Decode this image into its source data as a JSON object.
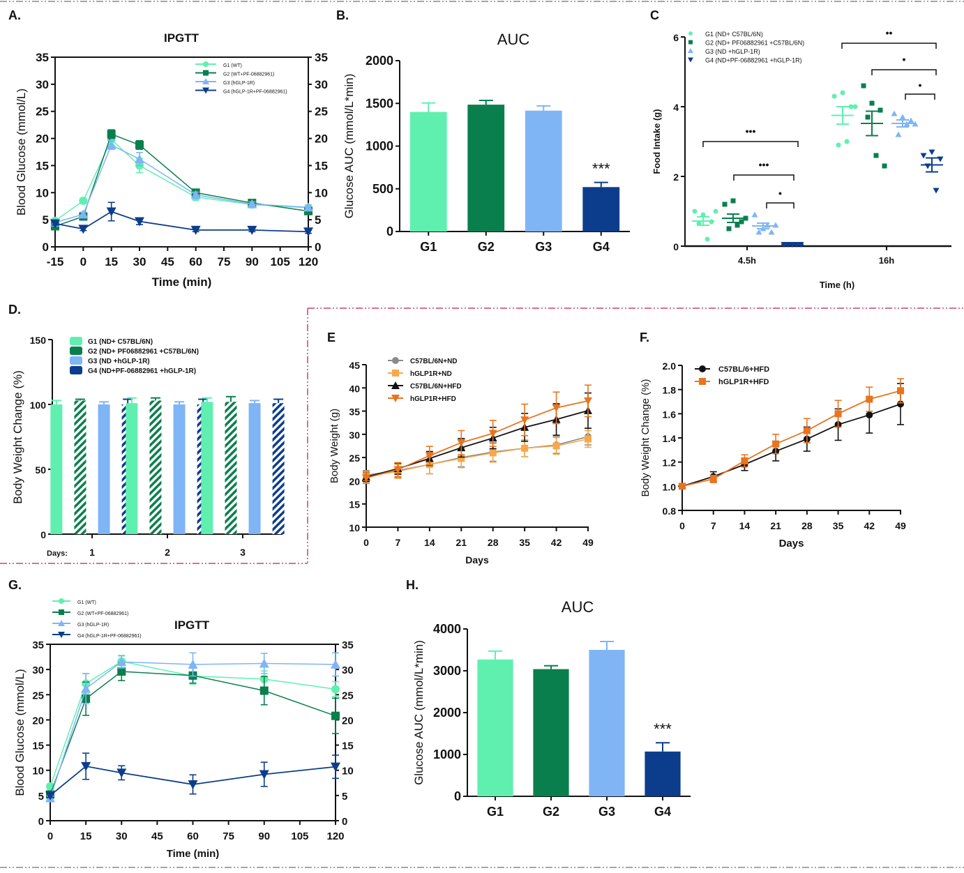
{
  "colors": {
    "g1": "#5ff0b0",
    "g2": "#0a7f4e",
    "g3": "#7fb5f5",
    "g4": "#0c3d8c",
    "gray": "#8a8a8a",
    "orange_light": "#f7a84a",
    "black": "#111111",
    "orange_dark": "#e8741e",
    "divider_pink": "#c8407a",
    "divider_gray": "#888888"
  },
  "chart_data": [
    {
      "panel": "A.",
      "type": "line",
      "title": "IPGTT",
      "xlabel": "Time (min)",
      "ylabel": "Blood Glucose (mmol/L)",
      "x": [
        -15,
        0,
        15,
        30,
        60,
        90,
        120
      ],
      "xticks": [
        "-15",
        "0",
        "15",
        "30",
        "45",
        "60",
        "75",
        "90",
        "105",
        "120"
      ],
      "xtick_values": [
        -15,
        0,
        15,
        30,
        45,
        60,
        75,
        90,
        105,
        120
      ],
      "ylim": [
        0,
        35
      ],
      "yticks": [
        0,
        5,
        10,
        15,
        20,
        25,
        30,
        35
      ],
      "right_axis": true,
      "legend": "top-right",
      "series": [
        {
          "name": "G1 (WT)",
          "marker": "circle",
          "values": [
            4.8,
            8.5,
            19.8,
            15.0,
            9.2,
            7.8,
            7.2
          ],
          "err": [
            0.3,
            0.5,
            1.0,
            1.3,
            0.6,
            0.4,
            0.4
          ]
        },
        {
          "name": "G2 (WT+PF-06882961)",
          "marker": "square",
          "values": [
            3.8,
            5.6,
            20.8,
            18.8,
            10.0,
            8.1,
            6.6
          ],
          "err": [
            0.3,
            0.4,
            0.8,
            0.8,
            0.5,
            0.3,
            0.4
          ]
        },
        {
          "name": "G3 (hGLP-1R)",
          "marker": "triangle",
          "values": [
            4.5,
            6.0,
            18.8,
            16.2,
            9.6,
            7.9,
            7.3
          ],
          "err": [
            0.3,
            0.4,
            0.8,
            1.2,
            0.5,
            0.4,
            0.4
          ]
        },
        {
          "name": "G4 (hGLP-1R+PF-06882961)",
          "marker": "triangle-down",
          "values": [
            4.3,
            3.3,
            6.5,
            4.7,
            3.1,
            3.1,
            2.8
          ],
          "err": [
            0.3,
            0.3,
            1.7,
            0.6,
            0.3,
            0.3,
            0.3
          ]
        }
      ]
    },
    {
      "panel": "B.",
      "type": "bar",
      "title": "AUC",
      "xlabel": "",
      "ylabel": "Glucose AUC (mmol/L*min)",
      "categories": [
        "G1",
        "G2",
        "G3",
        "G4"
      ],
      "values": [
        1400,
        1485,
        1415,
        520
      ],
      "err": [
        105,
        50,
        55,
        55
      ],
      "ylim": [
        0,
        2000
      ],
      "yticks": [
        0,
        500,
        1000,
        1500,
        2000
      ],
      "annotations": [
        {
          "category": "G4",
          "text": "***"
        }
      ]
    },
    {
      "panel": "C",
      "type": "scatter",
      "title": "",
      "xlabel": "Time (h)",
      "ylabel": "Food Intake (g)",
      "categories": [
        "4.5h",
        "16h"
      ],
      "ylim": [
        0,
        6
      ],
      "yticks": [
        0,
        2,
        4,
        6
      ],
      "legend": "top-left",
      "series": [
        {
          "name": "G1 (ND+ C57BL/6N)",
          "marker": "circle",
          "mean": [
            0.72,
            3.75
          ],
          "err": [
            0.12,
            0.25
          ],
          "points": [
            [
              1.0,
              0.9,
              0.7,
              0.65,
              0.2,
              1.0
            ],
            [
              4.3,
              4.4,
              4.0,
              2.9,
              3.0,
              4.0
            ]
          ]
        },
        {
          "name": "G2 (ND+ PF06882961 +C57BL/6N)",
          "marker": "square",
          "mean": [
            0.8,
            3.52
          ],
          "err": [
            0.12,
            0.35
          ],
          "points": [
            [
              1.2,
              1.3,
              0.7,
              0.5,
              0.6,
              0.8
            ],
            [
              4.6,
              4.1,
              3.9,
              3.7,
              2.6,
              2.3
            ]
          ]
        },
        {
          "name": "G3 (ND +hGLP-1R)",
          "marker": "triangle",
          "mean": [
            0.58,
            3.52
          ],
          "err": [
            0.08,
            0.1
          ],
          "points": [
            [
              0.9,
              0.5,
              0.4,
              0.4,
              0.6,
              0.6
            ],
            [
              3.8,
              3.7,
              3.6,
              3.2,
              3.5,
              3.5
            ]
          ]
        },
        {
          "name": "G4 (ND+PF-06882961 +hGLP-1R)",
          "marker": "triangle-down",
          "mean": [
            0.05,
            2.33
          ],
          "err": [
            0.02,
            0.2
          ],
          "points": [
            [
              0.05,
              0.05,
              0.05,
              0.05,
              0.05
            ],
            [
              2.6,
              2.7,
              2.5,
              2.3,
              1.6
            ]
          ]
        }
      ],
      "annotations": [
        {
          "time": "4.5h",
          "from": "G1",
          "to": "G4",
          "text": "•••"
        },
        {
          "time": "4.5h",
          "from": "G2",
          "to": "G4",
          "text": "•••"
        },
        {
          "time": "4.5h",
          "from": "G3",
          "to": "G4",
          "text": "•"
        },
        {
          "time": "16h",
          "from": "G1",
          "to": "G4",
          "text": "••"
        },
        {
          "time": "16h",
          "from": "G2",
          "to": "G4",
          "text": "•"
        },
        {
          "time": "16h",
          "from": "G3",
          "to": "G4",
          "text": "•"
        }
      ]
    },
    {
      "panel": "D.",
      "type": "bar",
      "title": "",
      "xlabel": "Days:",
      "ylabel": "Body Weight Change (%)",
      "categories": [
        "1",
        "2",
        "3"
      ],
      "ylim": [
        0,
        150
      ],
      "yticks": [
        0,
        50,
        100,
        150
      ],
      "legend": "top-left",
      "series": [
        {
          "name": "G1 (ND+ C57BL/6N)",
          "hatched": false,
          "values": [
            100,
            101,
            102
          ],
          "err": [
            3,
            4,
            3
          ]
        },
        {
          "name": "G2 (ND+ PF06882961 +C57BL/6N)",
          "hatched": true,
          "values": [
            103,
            103,
            102
          ],
          "err": [
            1,
            2,
            4
          ]
        },
        {
          "name": "G3 (ND +hGLP-1R)",
          "hatched": false,
          "values": [
            100,
            100,
            101
          ],
          "err": [
            2,
            2,
            2
          ]
        },
        {
          "name": "G4 (ND+PF-06882961 +hGLP-1R)",
          "hatched": true,
          "values": [
            100,
            100,
            101
          ],
          "err": [
            4,
            4,
            3
          ]
        }
      ]
    },
    {
      "panel": "E",
      "type": "line",
      "title": "",
      "xlabel": "Days",
      "ylabel": "Body Weight (g)",
      "x": [
        0,
        7,
        14,
        21,
        28,
        35,
        42,
        49
      ],
      "ylim": [
        10,
        45
      ],
      "yticks": [
        10,
        15,
        20,
        25,
        30,
        35,
        40,
        45
      ],
      "legend": "top-left",
      "series": [
        {
          "name": "C57BL/6N+ND",
          "marker": "circle",
          "values": [
            21.2,
            22.2,
            23.5,
            25.0,
            26.2,
            27.0,
            27.7,
            29.5
          ],
          "err": [
            1.0,
            1.5,
            2.0,
            2.0,
            2.0,
            1.8,
            1.8,
            1.8
          ]
        },
        {
          "name": "hGLP1R+ND",
          "marker": "square",
          "values": [
            21.0,
            22.0,
            23.5,
            24.8,
            26.0,
            27.0,
            27.5,
            29.0
          ],
          "err": [
            1.0,
            1.5,
            2.0,
            2.0,
            2.0,
            1.8,
            1.8,
            1.8
          ]
        },
        {
          "name": "C57BL/6N+HFD",
          "marker": "triangle",
          "values": [
            20.8,
            22.6,
            24.8,
            27.1,
            29.2,
            31.5,
            33.2,
            35.1
          ],
          "err": [
            1.0,
            1.2,
            1.5,
            2.0,
            2.3,
            3.0,
            3.4,
            3.8
          ]
        },
        {
          "name": "hGLP1R+HFD",
          "marker": "triangle-down",
          "values": [
            20.6,
            22.4,
            25.4,
            28.2,
            30.2,
            33.1,
            35.7,
            37.2
          ],
          "err": [
            1.2,
            1.5,
            2.0,
            2.6,
            2.8,
            3.4,
            3.4,
            3.4
          ]
        }
      ]
    },
    {
      "panel": "F.",
      "type": "line",
      "title": "",
      "xlabel": "Days",
      "ylabel": "Body Weight Change (%)",
      "x": [
        0,
        7,
        14,
        21,
        28,
        35,
        42,
        49
      ],
      "ylim": [
        0.8,
        2.0
      ],
      "yticks": [
        "0.8",
        "1.0",
        "1.2",
        "1.4",
        "1.6",
        "1.8",
        "2.0"
      ],
      "legend": "top-left",
      "series": [
        {
          "name": "C57BL/6+HFD",
          "marker": "circle",
          "values": [
            1.0,
            1.08,
            1.18,
            1.29,
            1.39,
            1.51,
            1.59,
            1.68
          ],
          "err": [
            0.01,
            0.04,
            0.05,
            0.08,
            0.1,
            0.13,
            0.15,
            0.17
          ]
        },
        {
          "name": "hGLP1R+HFD",
          "marker": "square",
          "values": [
            1.0,
            1.06,
            1.21,
            1.35,
            1.46,
            1.6,
            1.72,
            1.79
          ],
          "err": [
            0.01,
            0.03,
            0.05,
            0.08,
            0.1,
            0.11,
            0.1,
            0.1
          ]
        }
      ]
    },
    {
      "panel": "G.",
      "type": "line",
      "title": "IPGTT",
      "xlabel": "Time (min)",
      "ylabel": "Blood Glucose (mmol/L)",
      "x": [
        0,
        15,
        30,
        60,
        90,
        120
      ],
      "xtick_values": [
        0,
        15,
        30,
        45,
        60,
        75,
        90,
        105,
        120
      ],
      "ylim": [
        0,
        35
      ],
      "yticks": [
        0,
        5,
        10,
        15,
        20,
        25,
        30,
        35
      ],
      "right_axis": true,
      "legend": "top-left",
      "series": [
        {
          "name": "G1 (WT)",
          "marker": "circle",
          "values": [
            6.8,
            27.2,
            31.6,
            28.7,
            28.1,
            26.1
          ],
          "err": [
            0.5,
            2.0,
            1.2,
            1.6,
            1.6,
            1.5
          ]
        },
        {
          "name": "G2 (WT+PF-06882961)",
          "marker": "square",
          "values": [
            5.2,
            24.2,
            29.6,
            28.8,
            25.8,
            20.8
          ],
          "err": [
            0.4,
            3.3,
            1.8,
            1.5,
            2.8,
            3.5
          ]
        },
        {
          "name": "G3 (hGLP-1R)",
          "marker": "triangle",
          "values": [
            4.5,
            26.2,
            31.5,
            31.0,
            31.2,
            31.0
          ],
          "err": [
            0.4,
            3.0,
            1.2,
            2.3,
            2.0,
            2.3
          ]
        },
        {
          "name": "G4 (hGLP-1R+PF-06882961)",
          "marker": "triangle-down",
          "values": [
            5.0,
            10.8,
            9.5,
            7.2,
            9.2,
            10.7
          ],
          "err": [
            0.4,
            2.6,
            1.4,
            1.9,
            2.4,
            2.3
          ]
        }
      ]
    },
    {
      "panel": "H.",
      "type": "bar",
      "title": "AUC",
      "xlabel": "",
      "ylabel": "Glucose AUC (mmol/L*min)",
      "categories": [
        "G1",
        "G2",
        "G3",
        "G4"
      ],
      "values": [
        3270,
        3040,
        3500,
        1070
      ],
      "err": [
        200,
        80,
        200,
        210
      ],
      "ylim": [
        0,
        4000
      ],
      "yticks": [
        0,
        1000,
        2000,
        3000,
        4000
      ],
      "annotations": [
        {
          "category": "G4",
          "text": "***"
        }
      ]
    }
  ]
}
